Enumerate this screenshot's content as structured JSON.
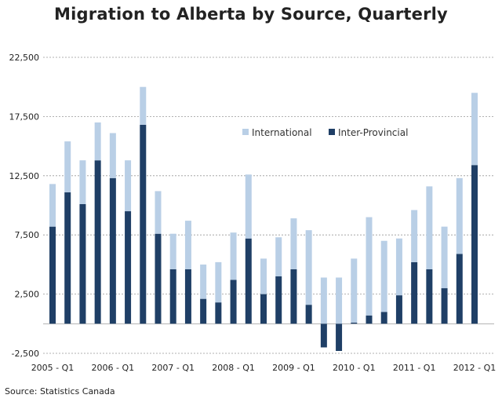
{
  "title": "Migration to Alberta by Source, Quarterly",
  "source_note": "Source: Statistics Canada",
  "colors": {
    "international": "#b9cfe6",
    "inter_provincial": "#1f3f66",
    "gridline": "#999999"
  },
  "chart_data": {
    "type": "bar",
    "stacked": true,
    "title": "Migration to Alberta by Source, Quarterly",
    "xlabel": "",
    "ylabel": "",
    "ylim": [
      -2500,
      22500
    ],
    "yticks": [
      -2500,
      2500,
      7500,
      12500,
      17500,
      22500
    ],
    "ytick_labels": [
      "-2,500",
      "2,500",
      "7,500",
      "12,500",
      "17,500",
      "22,500"
    ],
    "xtick_labels": [
      "2005 - Q1",
      "2006 - Q1",
      "2007 - Q1",
      "2008 - Q1",
      "2009 - Q1",
      "2010 - Q1",
      "2011 - Q1",
      "2012 - Q1"
    ],
    "xtick_indices": [
      0,
      4,
      8,
      12,
      16,
      20,
      24,
      28
    ],
    "grid": "horizontal dashed",
    "legend_position": "top-center",
    "categories": [
      "2005 Q1",
      "2005 Q2",
      "2005 Q3",
      "2005 Q4",
      "2006 Q1",
      "2006 Q2",
      "2006 Q3",
      "2006 Q4",
      "2007 Q1",
      "2007 Q2",
      "2007 Q3",
      "2007 Q4",
      "2008 Q1",
      "2008 Q2",
      "2008 Q3",
      "2008 Q4",
      "2009 Q1",
      "2009 Q2",
      "2009 Q3",
      "2009 Q4",
      "2010 Q1",
      "2010 Q2",
      "2010 Q3",
      "2010 Q4",
      "2011 Q1",
      "2011 Q2",
      "2011 Q3",
      "2011 Q4",
      "2012 Q1"
    ],
    "series": [
      {
        "name": "Inter-Provincial",
        "values": [
          8200,
          11100,
          10100,
          13800,
          12300,
          9500,
          16800,
          7600,
          4600,
          4600,
          2100,
          1800,
          3700,
          7200,
          2500,
          4000,
          4600,
          1600,
          -2000,
          -2300,
          100,
          700,
          1000,
          2400,
          5200,
          4600,
          3000,
          5900,
          13400
        ]
      },
      {
        "name": "International",
        "values": [
          3600,
          4300,
          3700,
          3200,
          3800,
          4300,
          3200,
          3600,
          3000,
          4100,
          2900,
          3400,
          4000,
          5400,
          3000,
          3300,
          4300,
          6300,
          3900,
          3900,
          5400,
          8300,
          6000,
          4800,
          4400,
          7000,
          5200,
          6400,
          6100
        ]
      }
    ]
  }
}
